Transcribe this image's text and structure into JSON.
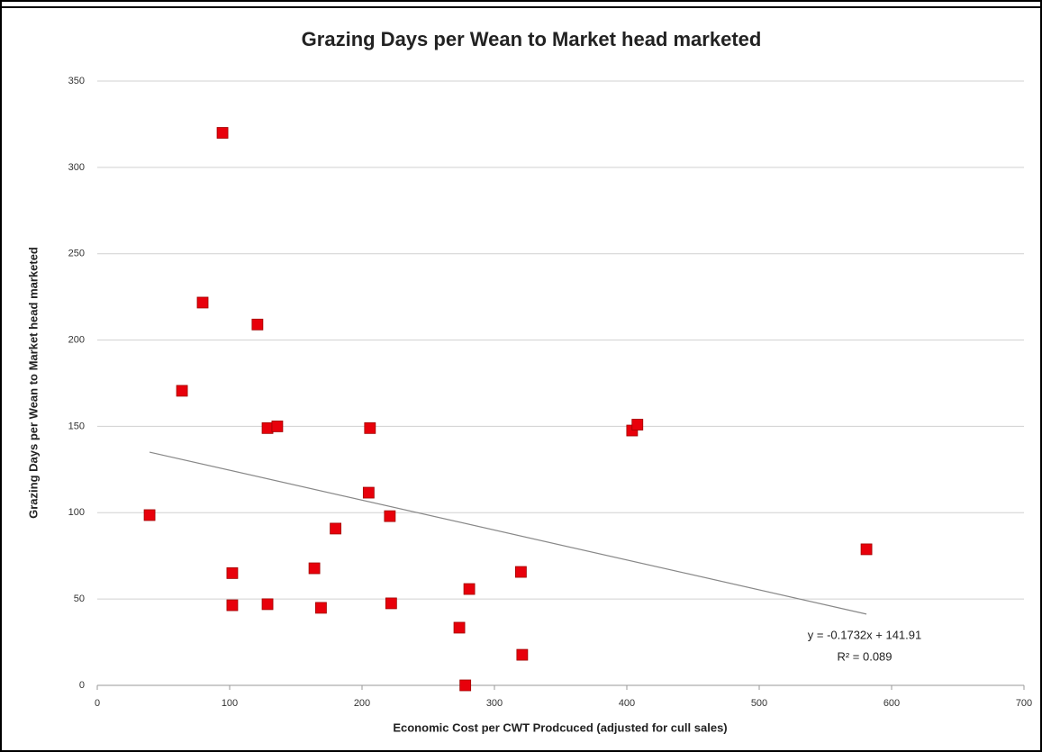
{
  "chart_data": {
    "type": "scatter",
    "title": "Grazing Days per Wean to Market head marketed",
    "x_label": "Economic Cost per CWT Prodcuced  (adjusted for cull sales)",
    "y_label": "Grazing Days per Wean to Market head marketed",
    "series": [
      {
        "name": "Grazing Days",
        "color": "#e8000b",
        "x": [
          94.6,
          79.6,
          121,
          64,
          128.6,
          136,
          206,
          205,
          39.5,
          221,
          180,
          164,
          102,
          102,
          128.6,
          169,
          222,
          273.5,
          281,
          278,
          320,
          321,
          404,
          408,
          581
        ],
        "values": [
          320,
          221.7,
          209,
          170.6,
          149,
          150,
          149,
          111.6,
          98.6,
          98,
          90.8,
          67.8,
          65,
          46.4,
          47,
          44.9,
          47.5,
          33.4,
          55.8,
          0,
          65.7,
          17.7,
          147.6,
          151,
          78.8
        ]
      }
    ],
    "trendline": {
      "slope": -0.1732,
      "intercept": 141.91,
      "equation": "y = -0.1732x + 141.91",
      "r2_label": "R² = 0.089"
    },
    "xlim": [
      0,
      700
    ],
    "xticks": [
      0,
      100,
      200,
      300,
      400,
      500,
      600,
      700
    ],
    "ylim": [
      0,
      350
    ],
    "yticks": [
      0,
      50,
      100,
      150,
      200,
      250,
      300,
      350
    ],
    "grid": true
  }
}
